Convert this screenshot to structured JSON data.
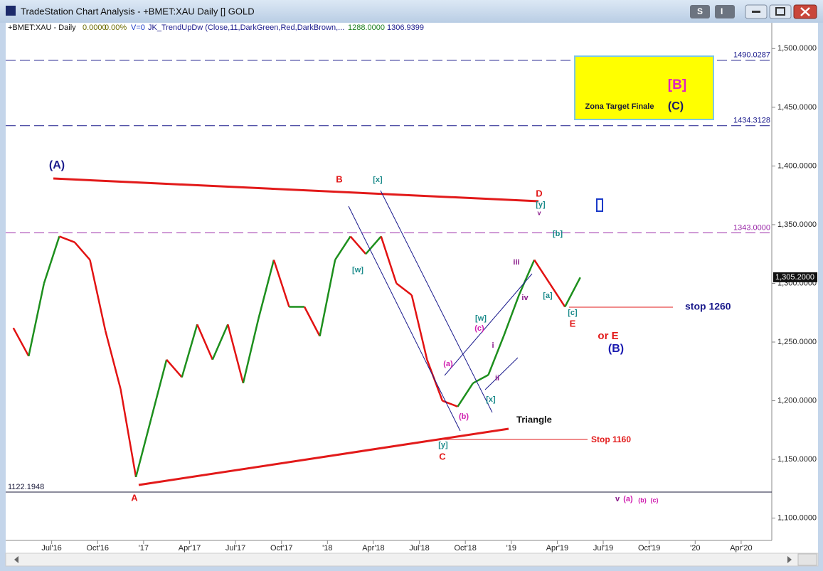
{
  "window": {
    "title": "TradeStation Chart Analysis - +BMET:XAU Daily [] GOLD",
    "buttons": [
      "S",
      "I"
    ]
  },
  "chart_data": {
    "type": "line",
    "header": [
      "+BMET:XAU - Daily",
      "0.0000",
      "0.00%",
      "V=0",
      "JK_TrendUpDw (Close,11,DarkGreen,Red,DarkBrown,...",
      "1288.0000",
      "1306.9399"
    ],
    "x": [
      "2016-04",
      "2016-05",
      "2016-06",
      "2016-07",
      "2016-08",
      "2016-09",
      "2016-10",
      "2016-11",
      "2016-12",
      "2017-01",
      "2017-02",
      "2017-03",
      "2017-04",
      "2017-05",
      "2017-06",
      "2017-07",
      "2017-08",
      "2017-09",
      "2017-10",
      "2017-11",
      "2017-12",
      "2018-01",
      "2018-02",
      "2018-03",
      "2018-04",
      "2018-05",
      "2018-06",
      "2018-07",
      "2018-08",
      "2018-09",
      "2018-10",
      "2018-11",
      "2018-12",
      "2019-01",
      "2019-02",
      "2019-03",
      "2019-04",
      "2019-05"
    ],
    "series": [
      {
        "values": [
          1262,
          1238,
          1300,
          1340,
          1335,
          1320,
          1260,
          1210,
          1135,
          1185,
          1235,
          1220,
          1265,
          1235,
          1265,
          1215,
          1270,
          1320,
          1280,
          1280,
          1255,
          1320,
          1340,
          1325,
          1340,
          1300,
          1290,
          1235,
          1200,
          1195,
          1215,
          1222,
          1255,
          1290,
          1320,
          1300,
          1280,
          1305
        ]
      }
    ],
    "up_color": "#1d8f1d",
    "down_color": "#e21212",
    "xlim": [
      "2016-04",
      "2020-06"
    ],
    "xticks": [
      {
        "value": "2016-07",
        "label": "Jul'16"
      },
      {
        "value": "2016-10",
        "label": "Oct'16"
      },
      {
        "value": "2017-01",
        "label": "'17"
      },
      {
        "value": "2017-04",
        "label": "Apr'17"
      },
      {
        "value": "2017-07",
        "label": "Jul'17"
      },
      {
        "value": "2017-10",
        "label": "Oct'17"
      },
      {
        "value": "2018-01",
        "label": "'18"
      },
      {
        "value": "2018-04",
        "label": "Apr'18"
      },
      {
        "value": "2018-07",
        "label": "Jul'18"
      },
      {
        "value": "2018-10",
        "label": "Oct'18"
      },
      {
        "value": "2019-01",
        "label": "'19"
      },
      {
        "value": "2019-04",
        "label": "Apr'19"
      },
      {
        "value": "2019-07",
        "label": "Jul'19"
      },
      {
        "value": "2019-10",
        "label": "Oct'19"
      },
      {
        "value": "2020-01",
        "label": "'20"
      },
      {
        "value": "2020-04",
        "label": "Apr'20"
      }
    ],
    "ylim": [
      1081,
      1522
    ],
    "yticks": [
      {
        "value": 1100,
        "label": "1,100.0000"
      },
      {
        "value": 1150,
        "label": "1,150.0000"
      },
      {
        "value": 1200,
        "label": "1,200.0000"
      },
      {
        "value": 1250,
        "label": "1,250.0000"
      },
      {
        "value": 1300,
        "label": "1,300.0000"
      },
      {
        "value": 1350,
        "label": "1,350.0000"
      },
      {
        "value": 1400,
        "label": "1,400.0000"
      },
      {
        "value": 1450,
        "label": "1,450.0000"
      },
      {
        "value": 1500,
        "label": "1,500.0000"
      }
    ],
    "levels": [
      {
        "value": 1490.0287,
        "label": "1490.0287",
        "color": "#1a1a8c"
      },
      {
        "value": 1434.3128,
        "label": "1434.3128",
        "color": "#1a1a8c"
      },
      {
        "value": 1343,
        "label": "1343.0000",
        "color": "#9a2aa8"
      },
      {
        "value": 1122.1948,
        "label": "1122.1948",
        "color": "#1a1a3a"
      }
    ],
    "last_price": {
      "value": 1305.2,
      "label": "1,305.2000"
    },
    "target_box": [
      "[B]",
      "(C)",
      "Zona Target Finale"
    ],
    "annotations": [
      "(A)",
      "A",
      "B",
      "[x]",
      "[w]",
      "C",
      "[y]",
      "(a)",
      "(b)",
      "(c)",
      "[w]",
      "[x]",
      "i",
      "ii",
      "iii",
      "iv",
      "v",
      "[y]",
      "D",
      "[b]",
      "[a]",
      "[c]",
      "E",
      "or E",
      "(B)",
      "stop 1260",
      "Stop 1160",
      "Triangle",
      "v",
      "(a)",
      "(b)",
      "(c)"
    ]
  }
}
